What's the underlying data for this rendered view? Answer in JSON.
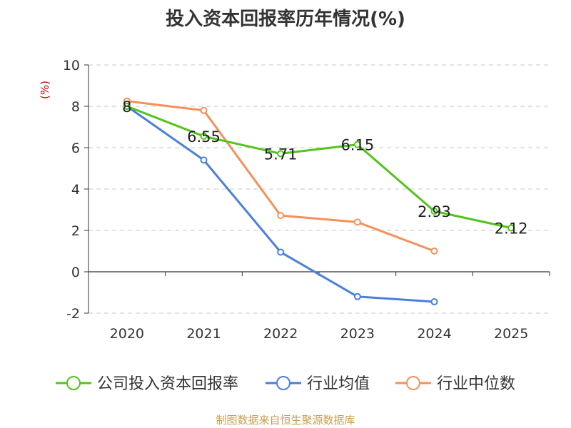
{
  "chart_data": {
    "type": "line",
    "title": "投入资本回报率历年情况(%)",
    "ylabel": "(%)",
    "xlabel": "",
    "categories": [
      "2020",
      "2021",
      "2022",
      "2023",
      "2024",
      "2025"
    ],
    "ylim": [
      -2,
      10
    ],
    "yticks": [
      10,
      8,
      6,
      4,
      2,
      0,
      -2
    ],
    "grid": true,
    "legend_position": "bottom",
    "series": [
      {
        "name": "公司投入资本回报率",
        "color": "#52c41a",
        "values": [
          8.0,
          6.55,
          5.71,
          6.15,
          2.93,
          2.12
        ],
        "labels": [
          "8",
          "6.55",
          "5.71",
          "6.15",
          "2.93",
          "2.12"
        ]
      },
      {
        "name": "行业均值",
        "color": "#4a7fdc",
        "values": [
          8.0,
          5.4,
          0.95,
          -1.2,
          -1.45,
          null
        ]
      },
      {
        "name": "行业中位数",
        "color": "#f5905a",
        "values": [
          8.25,
          7.8,
          2.72,
          2.4,
          1.0,
          null
        ]
      }
    ]
  },
  "source": "制图数据来自恒生聚源数据库"
}
